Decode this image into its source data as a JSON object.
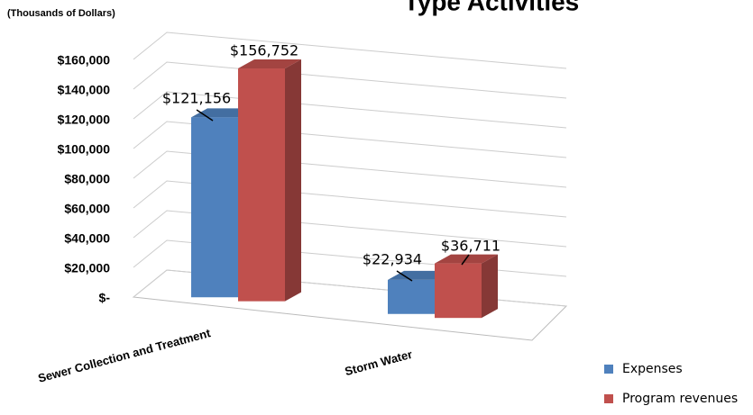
{
  "chart_data": {
    "type": "bar3d",
    "title": "Type Activities",
    "subtitle": "(Thousands of Dollars)",
    "categories": [
      "Sewer Collection and Treatment",
      "Storm Water"
    ],
    "series": [
      {
        "name": "Expenses",
        "color": "#4f81bd",
        "values": [
          121156,
          22934
        ],
        "value_labels": [
          "$121,156",
          "$22,934"
        ]
      },
      {
        "name": "Program revenues",
        "color": "#c0504d",
        "values": [
          156752,
          36711
        ],
        "value_labels": [
          "$156,752",
          "$36,711"
        ]
      }
    ],
    "ylim": [
      0,
      160000
    ],
    "yticks": [
      {
        "value": 0,
        "label": "$-"
      },
      {
        "value": 20000,
        "label": "$20,000"
      },
      {
        "value": 40000,
        "label": "$40,000"
      },
      {
        "value": 60000,
        "label": "$60,000"
      },
      {
        "value": 80000,
        "label": "$80,000"
      },
      {
        "value": 100000,
        "label": "$100,000"
      },
      {
        "value": 120000,
        "label": "$120,000"
      },
      {
        "value": 140000,
        "label": "$140,000"
      },
      {
        "value": 160000,
        "label": "$160,000"
      }
    ],
    "grid": true,
    "legend": "bottom-right"
  }
}
